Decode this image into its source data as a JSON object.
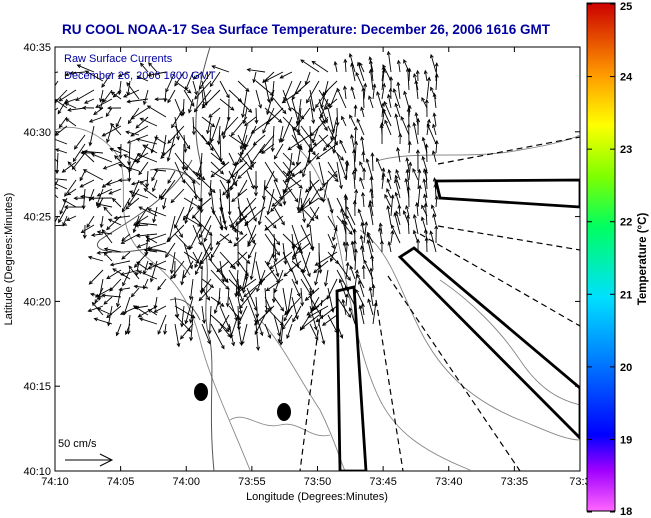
{
  "title": "RU COOL  NOAA-17  Sea Surface Temperature:  December 26, 2006 1616 GMT",
  "overlay": {
    "line1": "Raw Surface Currents",
    "line2": "December 26, 2006 1600 GMT"
  },
  "axes": {
    "xlabel": "Longitude (Degrees:Minutes)",
    "ylabel": "Latitude (Degrees:Minutes)",
    "x_ticks": [
      "74:10",
      "74:05",
      "74:00",
      "73:55",
      "73:50",
      "73:45",
      "73:40",
      "73:35",
      "73:3"
    ],
    "y_ticks": [
      "40:35",
      "40:30",
      "40:25",
      "40:20",
      "40:15",
      "40:10"
    ]
  },
  "scale_label": "50 cm/s",
  "colorbar": {
    "label": "Temperature (°C)",
    "ticks": [
      "25",
      "24",
      "23",
      "22",
      "21",
      "20",
      "19",
      "18"
    ],
    "min": 18,
    "max": 25
  },
  "colors": {
    "title": "#0000a0",
    "background": "#ffffff",
    "vectors": "#000000"
  }
}
